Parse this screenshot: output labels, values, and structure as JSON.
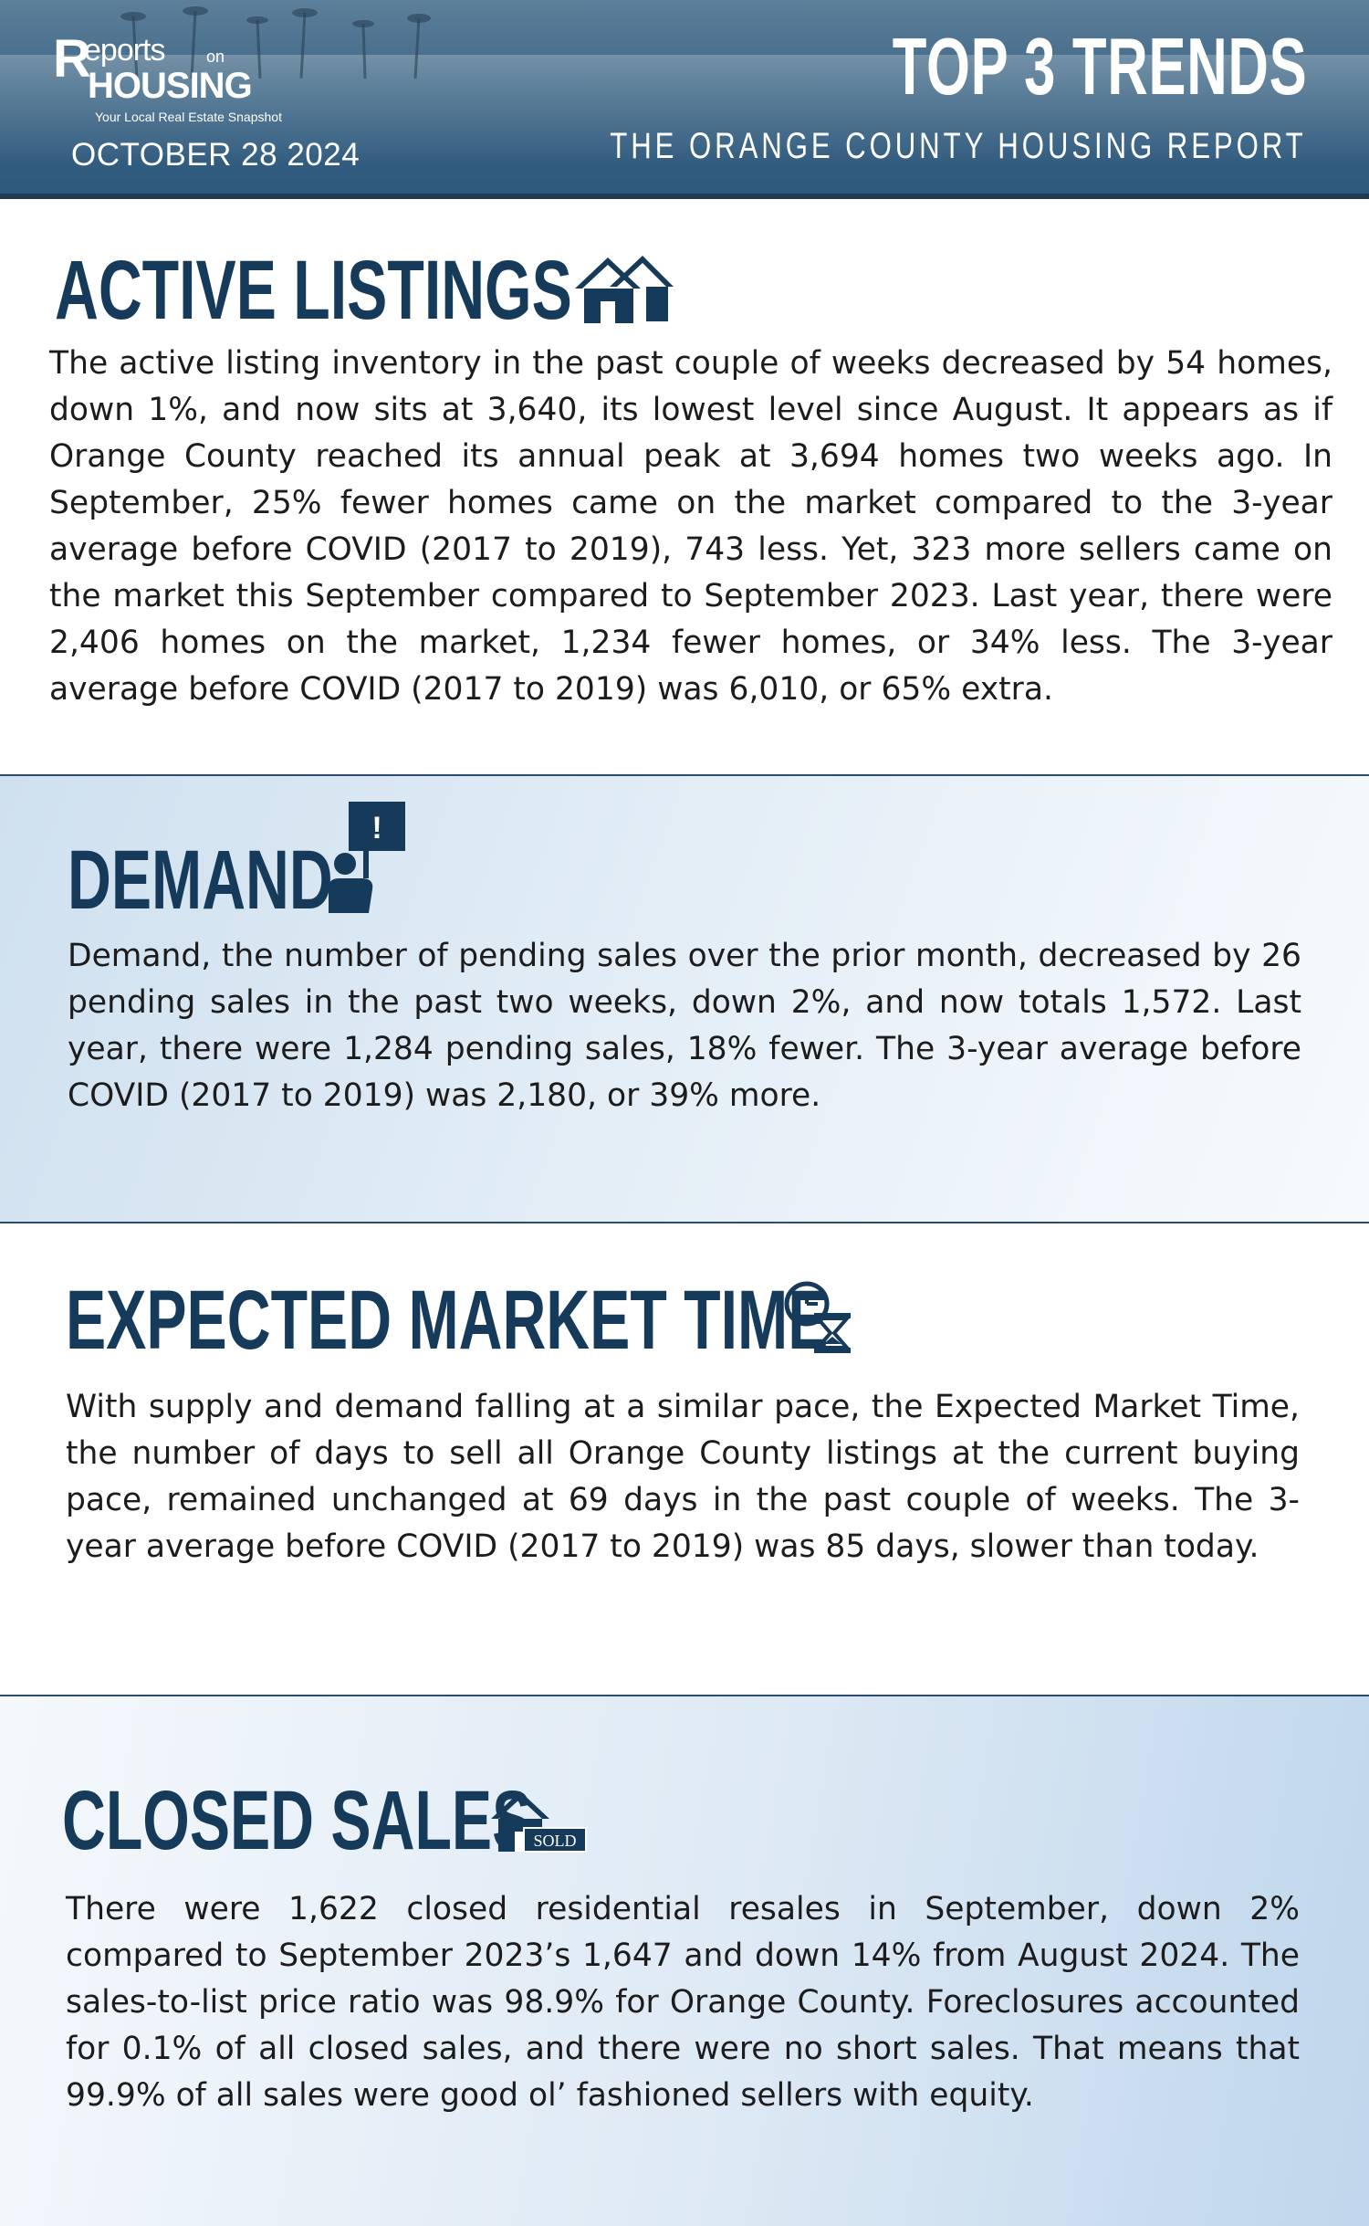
{
  "header": {
    "brand_r": "R",
    "brand_reports": "eports",
    "brand_on": "on",
    "brand_housing": "HOUSING",
    "brand_tagline": "Your Local Real Estate Snapshot",
    "date": "OCTOBER 28 2024",
    "title": "TOP 3 TRENDS",
    "subtitle": "THE ORANGE COUNTY HOUSING REPORT"
  },
  "sections": {
    "active_listings": {
      "heading": "ACTIVE LISTINGS",
      "icon": "houses-icon",
      "body": "The active listing inventory in the past couple of weeks decreased by 54 homes, down 1%, and now sits at 3,640, its lowest level since August. It appears as if Orange County reached its annual peak at 3,694 homes two weeks ago. In September, 25% fewer homes came on the market compared to the 3-year average before COVID (2017 to 2019), 743 less. Yet, 323 more sellers came on the market this September compared to September 2023. Last year, there were 2,406 homes on the market, 1,234 fewer homes, or 34% less. The 3-year average before COVID (2017 to 2019) was 6,010, or 65% extra."
    },
    "demand": {
      "heading": "DEMAND",
      "icon": "person-with-sign-icon",
      "sign_text": "!",
      "body": "Demand, the number of pending sales over the prior month, decreased by 26 pending sales in the past two weeks, down 2%, and now totals 1,572. Last year, there were 1,284 pending sales, 18% fewer. The 3-year average before COVID (2017 to 2019) was 2,180, or 39% more."
    },
    "expected_market_time": {
      "heading": "EXPECTED MARKET TIME",
      "icon": "clock-hourglass-icon",
      "body": "With supply and demand falling at a similar pace, the Expected Market Time, the number of days to sell all Orange County listings at the current buying pace, remained unchanged at 69 days in the past couple of weeks. The 3-year average before COVID (2017 to 2019) was 85 days, slower than today."
    },
    "closed_sales": {
      "heading": "CLOSED SALES",
      "icon": "house-sold-icon",
      "sold_label": "SOLD",
      "body": "There were 1,622 closed residential resales in September, down 2% compared to September 2023’s 1,647 and down 14% from August 2024. The sales-to-list price ratio was 98.9% for Orange County. Foreclosures accounted for 0.1% of all closed sales, and there were no short sales. That means that 99.9% of all sales were good ol’ fashioned sellers with equity."
    }
  },
  "colors": {
    "heading": "#163a5a",
    "header_bg": "#2c577c",
    "divider": "#2b4d69"
  }
}
